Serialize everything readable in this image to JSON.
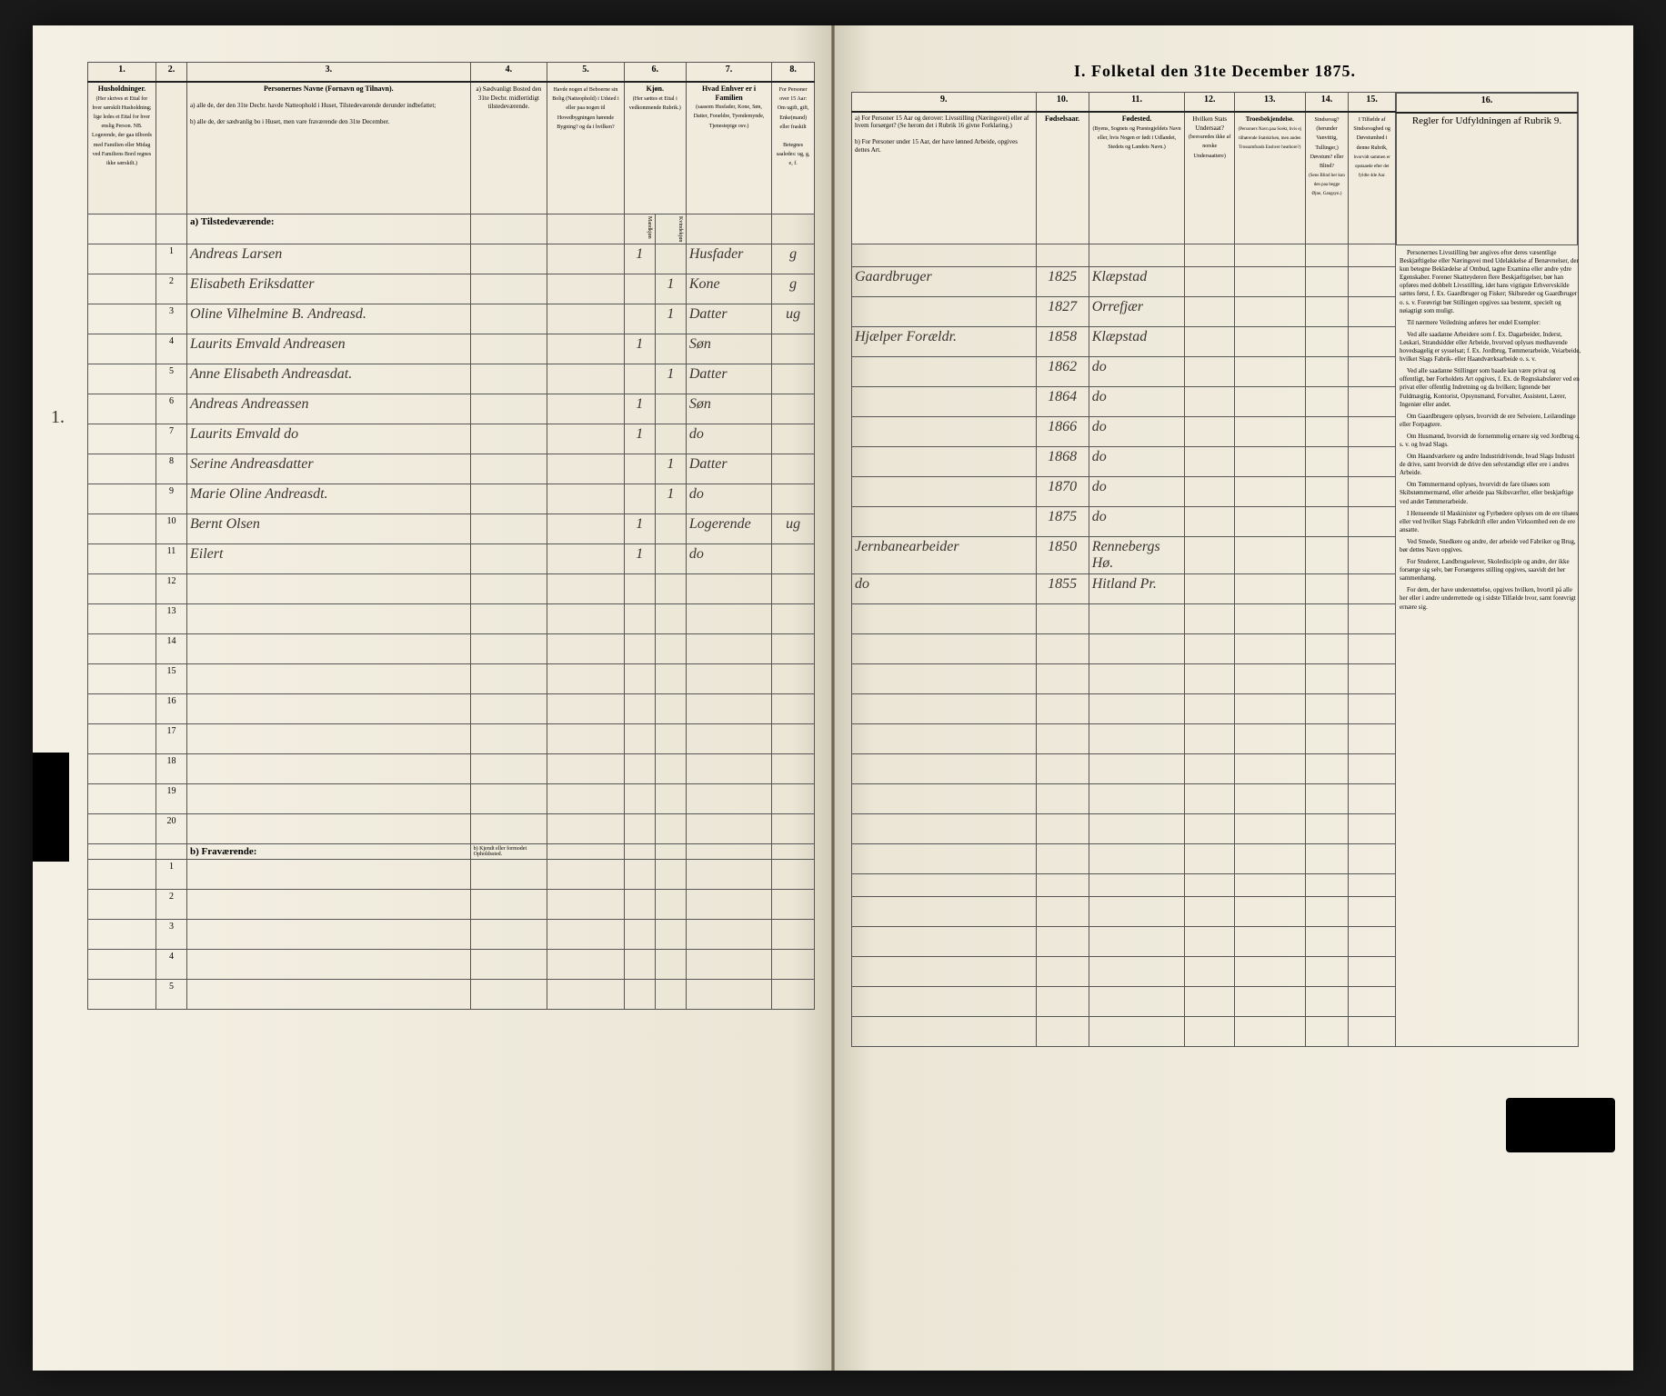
{
  "document": {
    "title": "I. Folketal den 31te December 1875.",
    "section_a": "a) Tilstedeværende:",
    "section_b": "b) Fraværende:",
    "margin_note": "1."
  },
  "columns_left": {
    "c1": "1.",
    "c2": "2.",
    "c3": "3.",
    "c4": "4.",
    "c5": "5.",
    "c6": "6.",
    "c7": "7.",
    "c8": "8.",
    "h1": "Husholdninger.",
    "h1_sub": "(Her skrives et Ettal for hver særskilt Husholdning; lige ledes et Ettal for hver enslig Person. NB. Logerende, der gaa tilbords med Familien eller Midag ved Familiens Bord regnes ikke særskilt.)",
    "h3": "Personernes Navne (Fornavn og Tilnavn).",
    "h3_sub_a": "a) alle de, der den 31te Decbr. havde Natteophold i Huset, Tilstedeværende derunder indbefattet;",
    "h3_sub_b": "b) alle de, der sædvanlig bo i Huset, men vare fraværende den 31te December.",
    "h4": "a) Sædvanligt Bosted den 31te Decbr. midlertidigt tilstedeværende.",
    "h4_b": "b) Kjendt eller formodet Opholdssted.",
    "h5": "Havde nogen af Beboerne sin Bolig (Natteophold) i Udsted i eller paa nogen til Hovedbygningen hørende Bygning? og da i hvilken?",
    "h6": "Kjøn.",
    "h6_sub": "(Her sættes et Ettal i vedkommende Rubrik.)",
    "h6_m": "Mandkjøn",
    "h6_k": "Kvindekjøn",
    "h7": "Hvad Enhver er i Familien",
    "h7_sub": "(saasom Husfader, Kone, Søn, Datter, Forældre, Tyendemynde, Tjenestepige osv.)",
    "h8": "For Personer over 15 Aar: Om ugift, gift, Enke(mand) eller fraskilt",
    "h8_sub": "Betegnes saaledes: ug, g, e, f."
  },
  "columns_right": {
    "c9": "9.",
    "c10": "10.",
    "c11": "11.",
    "c12": "12.",
    "c13": "13.",
    "c14": "14.",
    "c15": "15.",
    "c16": "16.",
    "h9_a": "a) For Personer 15 Aar og derover: Livsstilling (Næringsvei) eller af hvem forsørget? (Se herom det i Rubrik 16 givne Forklaring.)",
    "h9_b": "b) For Personer under 15 Aar, der have lønned Arbeide, opgives dettes Art.",
    "h10": "Fødselsaar.",
    "h11": "Fødested.",
    "h11_sub": "(Byens, Sognets og Præstegjeldets Navn eller, hvis Nogen er født i Udlandet, Stedets og Landets Navn.)",
    "h12": "Hvilken Stats Undersaat?",
    "h12_sub": "(besvaredes ikke af norske Undersaattere)",
    "h13": "Troesbekjendelse.",
    "h13_sub": "(Personers Navn paa Scekt, hvis ej tilhørende Statskirken, men anden Trossamfunds Enshver heathore?)",
    "h14": "Sindssvag? (herunder Vanvittig, Tullinger,) Døvstum? eller Blind?",
    "h14_sub": "(Sens Blind her kun den paa begge Øjne, Gangsyn.)",
    "h15": "I Tilfælde af Sindssvaghed og Døvstumhed i denne Rubrik,",
    "h15_sub": "hvorvidt sammen er opstaaede efter det fyldte 4de Aar.",
    "h16": "Regler for Udfyldningen af Rubrik 9."
  },
  "rows": [
    {
      "n": "1",
      "name": "Andreas Larsen",
      "m": "1",
      "k": "",
      "rel": "Husfader",
      "stat": "g",
      "occ": "Gaardbruger",
      "year": "1825",
      "place": "Klæpstad"
    },
    {
      "n": "2",
      "name": "Elisabeth Eriksdatter",
      "m": "",
      "k": "1",
      "rel": "Kone",
      "stat": "g",
      "occ": "",
      "year": "1827",
      "place": "Orrefjær"
    },
    {
      "n": "3",
      "name": "Oline Vilhelmine B. Andreasd.",
      "m": "",
      "k": "1",
      "rel": "Datter",
      "stat": "ug",
      "occ": "Hjælper Forældr.",
      "year": "1858",
      "place": "Klæpstad"
    },
    {
      "n": "4",
      "name": "Laurits Emvald Andreasen",
      "m": "1",
      "k": "",
      "rel": "Søn",
      "stat": "",
      "occ": "",
      "year": "1862",
      "place": "do"
    },
    {
      "n": "5",
      "name": "Anne Elisabeth Andreasdat.",
      "m": "",
      "k": "1",
      "rel": "Datter",
      "stat": "",
      "occ": "",
      "year": "1864",
      "place": "do"
    },
    {
      "n": "6",
      "name": "Andreas Andreassen",
      "m": "1",
      "k": "",
      "rel": "Søn",
      "stat": "",
      "occ": "",
      "year": "1866",
      "place": "do"
    },
    {
      "n": "7",
      "name": "Laurits Emvald do",
      "m": "1",
      "k": "",
      "rel": "do",
      "stat": "",
      "occ": "",
      "year": "1868",
      "place": "do"
    },
    {
      "n": "8",
      "name": "Serine Andreasdatter",
      "m": "",
      "k": "1",
      "rel": "Datter",
      "stat": "",
      "occ": "",
      "year": "1870",
      "place": "do"
    },
    {
      "n": "9",
      "name": "Marie Oline Andreasdt.",
      "m": "",
      "k": "1",
      "rel": "do",
      "stat": "",
      "occ": "",
      "year": "1875",
      "place": "do"
    },
    {
      "n": "10",
      "name": "Bernt Olsen",
      "m": "1",
      "k": "",
      "rel": "Logerende",
      "stat": "ug",
      "occ": "Jernbanearbeider",
      "year": "1850",
      "place": "Rennebergs Hø."
    },
    {
      "n": "11",
      "name": "Eilert",
      "m": "1",
      "k": "",
      "rel": "do",
      "stat": "",
      "occ": "do",
      "year": "1855",
      "place": "Hitland Pr."
    }
  ],
  "empty_rows_a": [
    "12",
    "13",
    "14",
    "15",
    "16",
    "17",
    "18",
    "19",
    "20"
  ],
  "empty_rows_b": [
    "1",
    "2",
    "3",
    "4",
    "5"
  ],
  "rules_text": {
    "p1": "Personernes Livsstilling bør angives efter deres væsentlige Beskjæftigelse eller Næringsvei med Udelakkelse af Benævnelser, der kun betegne Beklædelse af Ombud, tagne Examina eller andre ydre Egenskaber. Forener Skatteyderen flere Beskjæftigelser, bør han opføres med dobbelt Livsstilling, idet hans vigtigste Erhvervskilde sættes først, f. Ex. Gaardbruger og Fisker; Skibsreder og Gaardbruger o. s. v. Forøvrigt bør Stillingen opgives saa bestemt, specielt og nøiagtigt som muligt.",
    "p2": "Til nærmere Veiledning anføres her endel Exempler:",
    "p3": "Ved alle saadanne Arbeidere som f. Ex. Dagarbeider, Inderst, Løskari, Strandsidder eller Arbeide, hvorved oplyses medhavende hovedsagelig er sysselsat; f. Ex. Jordbrug, Tømmerarbeide, Veiarbeide, hvilket Slags Fabrik- eller Haandværksarbeide o. s. v.",
    "p4": "Ved alle saadanne Stillinger som baade kan være privat og offentligt, bør Forholdets Art opgives, f. Ex. de Regnskabsfører ved en privat eller offentlig Indretning og da hvilken; lignende bør Fuldmægtig, Kontorist, Opsynsmand, Forvalter, Assistent, Lærer, Ingeniør eller andet.",
    "p5": "Om Gaardbrugere oplyses, hvorvidt de ere Selveiere, Leilændinge eller Forpagtere.",
    "p6": "Om Husmænd, hvorvidt de fornemmelig ernære sig ved Jordbrug o. s. v. og hvad Slags.",
    "p7": "Om Haandværkere og andre Industridrivende, hvad Slags Industri de drive, samt hvorvidt de drive den selvstændigt eller ere i andres Arbeide.",
    "p8": "Om Tømmermænd oplyses, hvorvidt de fare tilsøes som Skibstømmermænd, eller arbeide paa Skibsværfter, eller beskjæftige ved andet Tømmerarbeide.",
    "p9": "I Henseende til Maskinister og Fyrbødere oplyses om de ere tilsøes eller ved hvilket Slags Fabrikdrift eller anden Virksomhed een de ere ansatte.",
    "p10": "Ved Smede, Snedkere og andre, der arbeide ved Fabriker og Brug, bør dettes Navn opgives.",
    "p11": "For Studerer, Landbrugselever, Skoledisciple og andre, der ikke forsørge sig selv, bør Forsørgeres stilling opgives, saavidt det her sammenhæng.",
    "p12": "For dem, der have understøttelse, opgives hvilken, hvortil på alle her eller i andre underrettede og i sidste Tilfælde hvor, samt forøvrigt ernære sig."
  }
}
